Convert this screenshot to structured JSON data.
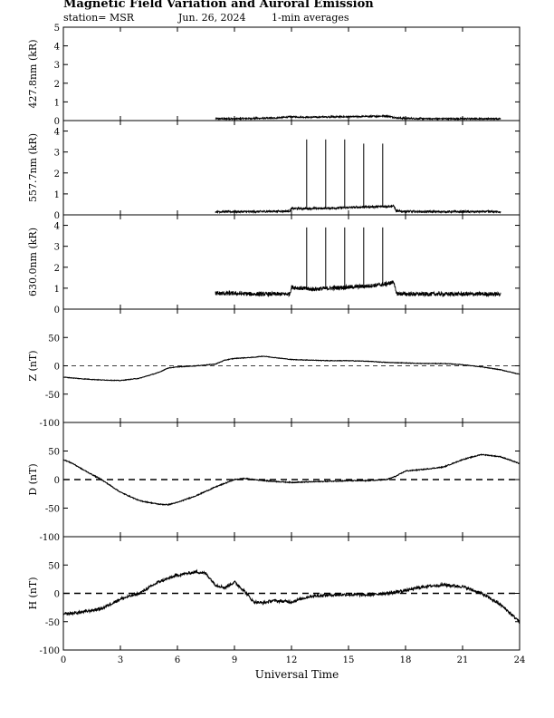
{
  "header": {
    "title": "Magnetic Field Variation and Auroral Emission",
    "station": "station= MSR",
    "date": "Jun. 26, 2024",
    "averaging": "1-min averages"
  },
  "chart_data": [
    {
      "type": "line",
      "ylabel": "427.8nm (kR)",
      "ylim": [
        0,
        5
      ],
      "yticks": [
        0,
        1,
        2,
        3,
        4,
        5
      ],
      "xlim": [
        0,
        24
      ],
      "x": [
        8,
        9,
        10,
        11,
        12,
        13,
        14,
        15,
        16,
        17,
        17.5,
        18,
        19,
        20,
        21,
        22,
        23
      ],
      "values": [
        0.1,
        0.1,
        0.12,
        0.13,
        0.2,
        0.18,
        0.2,
        0.2,
        0.22,
        0.25,
        0.15,
        0.12,
        0.1,
        0.1,
        0.1,
        0.1,
        0.1
      ],
      "spikes": [],
      "noise": 0.04,
      "show_zero_line": false
    },
    {
      "type": "line",
      "ylabel": "557.7nm (kR)",
      "ylim": [
        0,
        4.5
      ],
      "yticks": [
        0,
        1,
        2,
        3,
        4
      ],
      "xlim": [
        0,
        24
      ],
      "x": [
        8,
        9,
        10,
        11,
        11.9,
        12,
        13,
        14,
        15,
        16,
        17,
        17.4,
        17.5,
        18,
        19,
        20,
        21,
        22,
        23
      ],
      "values": [
        0.15,
        0.15,
        0.15,
        0.17,
        0.18,
        0.3,
        0.3,
        0.32,
        0.35,
        0.38,
        0.4,
        0.42,
        0.18,
        0.16,
        0.15,
        0.15,
        0.15,
        0.15,
        0.15
      ],
      "spikes": [
        {
          "x": 12.8,
          "value": 3.6
        },
        {
          "x": 13.8,
          "value": 3.6
        },
        {
          "x": 14.8,
          "value": 3.6
        },
        {
          "x": 15.8,
          "value": 3.4
        },
        {
          "x": 16.8,
          "value": 3.4
        }
      ],
      "noise": 0.05,
      "show_zero_line": false
    },
    {
      "type": "line",
      "ylabel": "630.0nm (kR)",
      "ylim": [
        0,
        4.5
      ],
      "yticks": [
        0,
        1,
        2,
        3,
        4
      ],
      "xlim": [
        0,
        24
      ],
      "x": [
        8,
        9,
        10,
        11,
        11.9,
        12,
        13,
        14,
        15,
        16,
        17,
        17.4,
        17.5,
        18,
        19,
        20,
        21,
        22,
        23
      ],
      "values": [
        0.75,
        0.75,
        0.72,
        0.72,
        0.72,
        1.05,
        0.95,
        1.0,
        1.05,
        1.1,
        1.2,
        1.3,
        0.75,
        0.72,
        0.72,
        0.72,
        0.72,
        0.72,
        0.72
      ],
      "spikes": [
        {
          "x": 12.8,
          "value": 3.9
        },
        {
          "x": 13.8,
          "value": 3.9
        },
        {
          "x": 14.8,
          "value": 3.9
        },
        {
          "x": 15.8,
          "value": 3.9
        },
        {
          "x": 16.8,
          "value": 3.9
        }
      ],
      "noise": 0.1,
      "show_zero_line": false
    },
    {
      "type": "line",
      "ylabel": "Z (nT)",
      "ylim": [
        -100,
        100
      ],
      "yticks": [
        -100,
        -50,
        0,
        50
      ],
      "xlim": [
        0,
        24
      ],
      "x": [
        0,
        1,
        2,
        3,
        4,
        5,
        5.5,
        6,
        7,
        8,
        8.5,
        9,
        10,
        10.5,
        11,
        12,
        13,
        14,
        15,
        16,
        17,
        18,
        19,
        20,
        21,
        22,
        23,
        24
      ],
      "values": [
        -20,
        -23,
        -25,
        -26,
        -22,
        -12,
        -4,
        -2,
        0,
        3,
        10,
        13,
        15,
        17,
        15,
        11,
        10,
        9,
        9,
        8,
        6,
        5,
        4,
        4,
        2,
        -2,
        -7,
        -15
      ],
      "spikes": [],
      "noise": 0.5,
      "show_zero_line": true
    },
    {
      "type": "line",
      "ylabel": "D (nT)",
      "ylim": [
        -100,
        100
      ],
      "yticks": [
        -100,
        -50,
        0,
        50
      ],
      "xlim": [
        0,
        24
      ],
      "x": [
        0,
        0.5,
        1,
        2,
        3,
        4,
        5,
        5.5,
        6,
        7,
        8,
        9,
        9.5,
        10,
        11,
        12,
        13,
        14,
        15,
        16,
        17,
        17.5,
        18,
        19,
        20,
        21,
        22,
        23,
        24
      ],
      "values": [
        35,
        28,
        18,
        0,
        -22,
        -37,
        -43,
        -44,
        -40,
        -28,
        -13,
        0,
        2,
        0,
        -3,
        -5,
        -4,
        -3,
        -2,
        -2,
        0,
        6,
        15,
        18,
        22,
        35,
        44,
        40,
        28
      ],
      "spikes": [],
      "noise": 0.8,
      "show_zero_line": true
    },
    {
      "type": "line",
      "ylabel": "H (nT)",
      "ylim": [
        -100,
        100
      ],
      "yticks": [
        -100,
        -50,
        0,
        50
      ],
      "xlim": [
        0,
        24
      ],
      "x": [
        0,
        1,
        2,
        3,
        4,
        5,
        6,
        7,
        7.5,
        8,
        8.5,
        9,
        9.5,
        10,
        10.5,
        11,
        12,
        13,
        14,
        15,
        16,
        17,
        18,
        19,
        20,
        21,
        22,
        23,
        24
      ],
      "values": [
        -37,
        -33,
        -27,
        -10,
        0,
        20,
        32,
        38,
        35,
        15,
        10,
        20,
        5,
        -15,
        -17,
        -13,
        -15,
        -5,
        -3,
        -2,
        -3,
        0,
        5,
        12,
        15,
        12,
        0,
        -20,
        -50
      ],
      "spikes": [],
      "noise": 2.5,
      "show_zero_line": true
    }
  ],
  "x_axis": {
    "label": "Universal Time",
    "ticks": [
      0,
      3,
      6,
      9,
      12,
      15,
      18,
      21,
      24
    ]
  }
}
